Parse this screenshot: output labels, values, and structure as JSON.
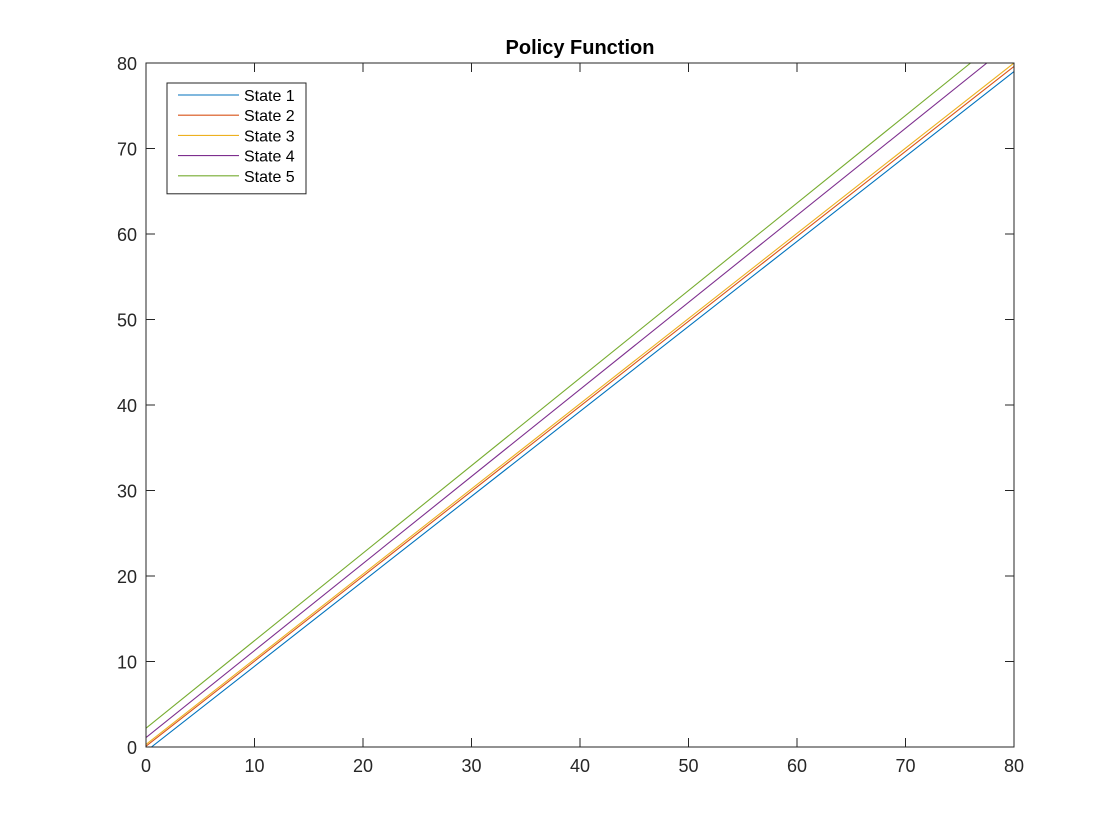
{
  "chart_data": {
    "type": "line",
    "title": "Policy Function",
    "xlabel": "",
    "ylabel": "",
    "xlim": [
      0,
      80
    ],
    "ylim": [
      0,
      80
    ],
    "x_ticks": [
      0,
      10,
      20,
      30,
      40,
      50,
      60,
      70,
      80
    ],
    "y_ticks": [
      0,
      10,
      20,
      30,
      40,
      50,
      60,
      70,
      80
    ],
    "grid": false,
    "legend_position": "top-left",
    "series": [
      {
        "name": "State 1",
        "color": "#0072BD",
        "x": [
          0,
          0.5,
          80
        ],
        "y": [
          0,
          0,
          79.0
        ]
      },
      {
        "name": "State 2",
        "color": "#D95319",
        "x": [
          0,
          80
        ],
        "y": [
          0.1,
          79.6
        ]
      },
      {
        "name": "State 3",
        "color": "#EDB120",
        "x": [
          0,
          80
        ],
        "y": [
          0.3,
          80.0
        ]
      },
      {
        "name": "State 4",
        "color": "#7E2F8E",
        "x": [
          0,
          77.5
        ],
        "y": [
          1.1,
          80.0
        ]
      },
      {
        "name": "State 5",
        "color": "#77AC30",
        "x": [
          0,
          76.0
        ],
        "y": [
          2.2,
          80.0
        ]
      }
    ]
  }
}
